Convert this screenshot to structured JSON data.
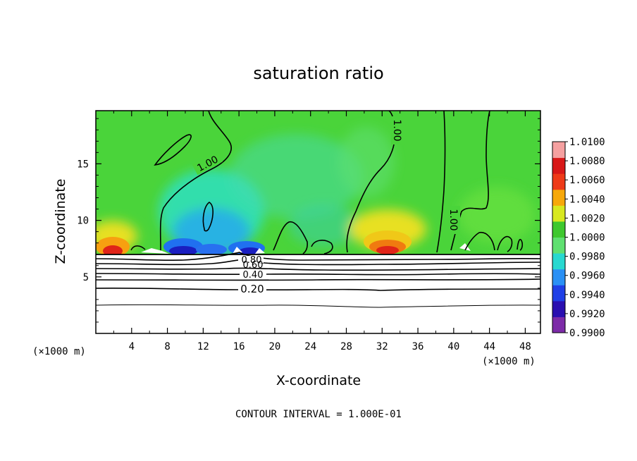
{
  "chart_data": {
    "type": "heatmap",
    "title": "saturation ratio",
    "xlabel": "X-coordinate",
    "ylabel": "Z-coordinate",
    "x_units": "(×1000 m)",
    "x_ticks": [
      4,
      8,
      12,
      16,
      20,
      24,
      28,
      32,
      36,
      40,
      44,
      48
    ],
    "y_ticks": [
      5,
      10,
      15
    ],
    "xlim": [
      0,
      49.7
    ],
    "ylim": [
      0,
      19.7
    ],
    "footer": "CONTOUR INTERVAL = 1.000E-01",
    "colorbar": {
      "levels": [
        0.99,
        0.992,
        0.994,
        0.996,
        0.998,
        1.0,
        1.002,
        1.004,
        1.006,
        1.008,
        1.01
      ],
      "labels": [
        "0.9900",
        "0.9920",
        "0.9940",
        "0.9960",
        "0.9980",
        "1.0000",
        "1.0020",
        "1.0040",
        "1.0060",
        "1.0080",
        "1.0100"
      ],
      "colors": [
        "#7d2ba8",
        "#2a0fb0",
        "#1f3fe6",
        "#2a90f5",
        "#28d8d0",
        "#5fe070",
        "#3ec82e",
        "#d8e820",
        "#f7a80a",
        "#ee3a18",
        "#d81818",
        "#f5a0a0"
      ]
    },
    "contour_labels": [
      {
        "text": "1.00",
        "x": 13.2,
        "z": 15.0,
        "angle": -28
      },
      {
        "text": "1.00",
        "x": 33.0,
        "z": 17.3,
        "angle": 90
      },
      {
        "text": "1.00",
        "x": 39.6,
        "z": 9.8,
        "angle": 90
      },
      {
        "text": "0.80",
        "x": 17.2,
        "z": 6.8,
        "angle": 0
      },
      {
        "text": "0.60",
        "x": 17.5,
        "z": 6.2,
        "angle": 0
      },
      {
        "text": "0.40",
        "x": 17.8,
        "z": 5.1,
        "angle": 0
      },
      {
        "text": "0.20",
        "x": 17.5,
        "z": 3.9,
        "angle": 0
      }
    ]
  }
}
